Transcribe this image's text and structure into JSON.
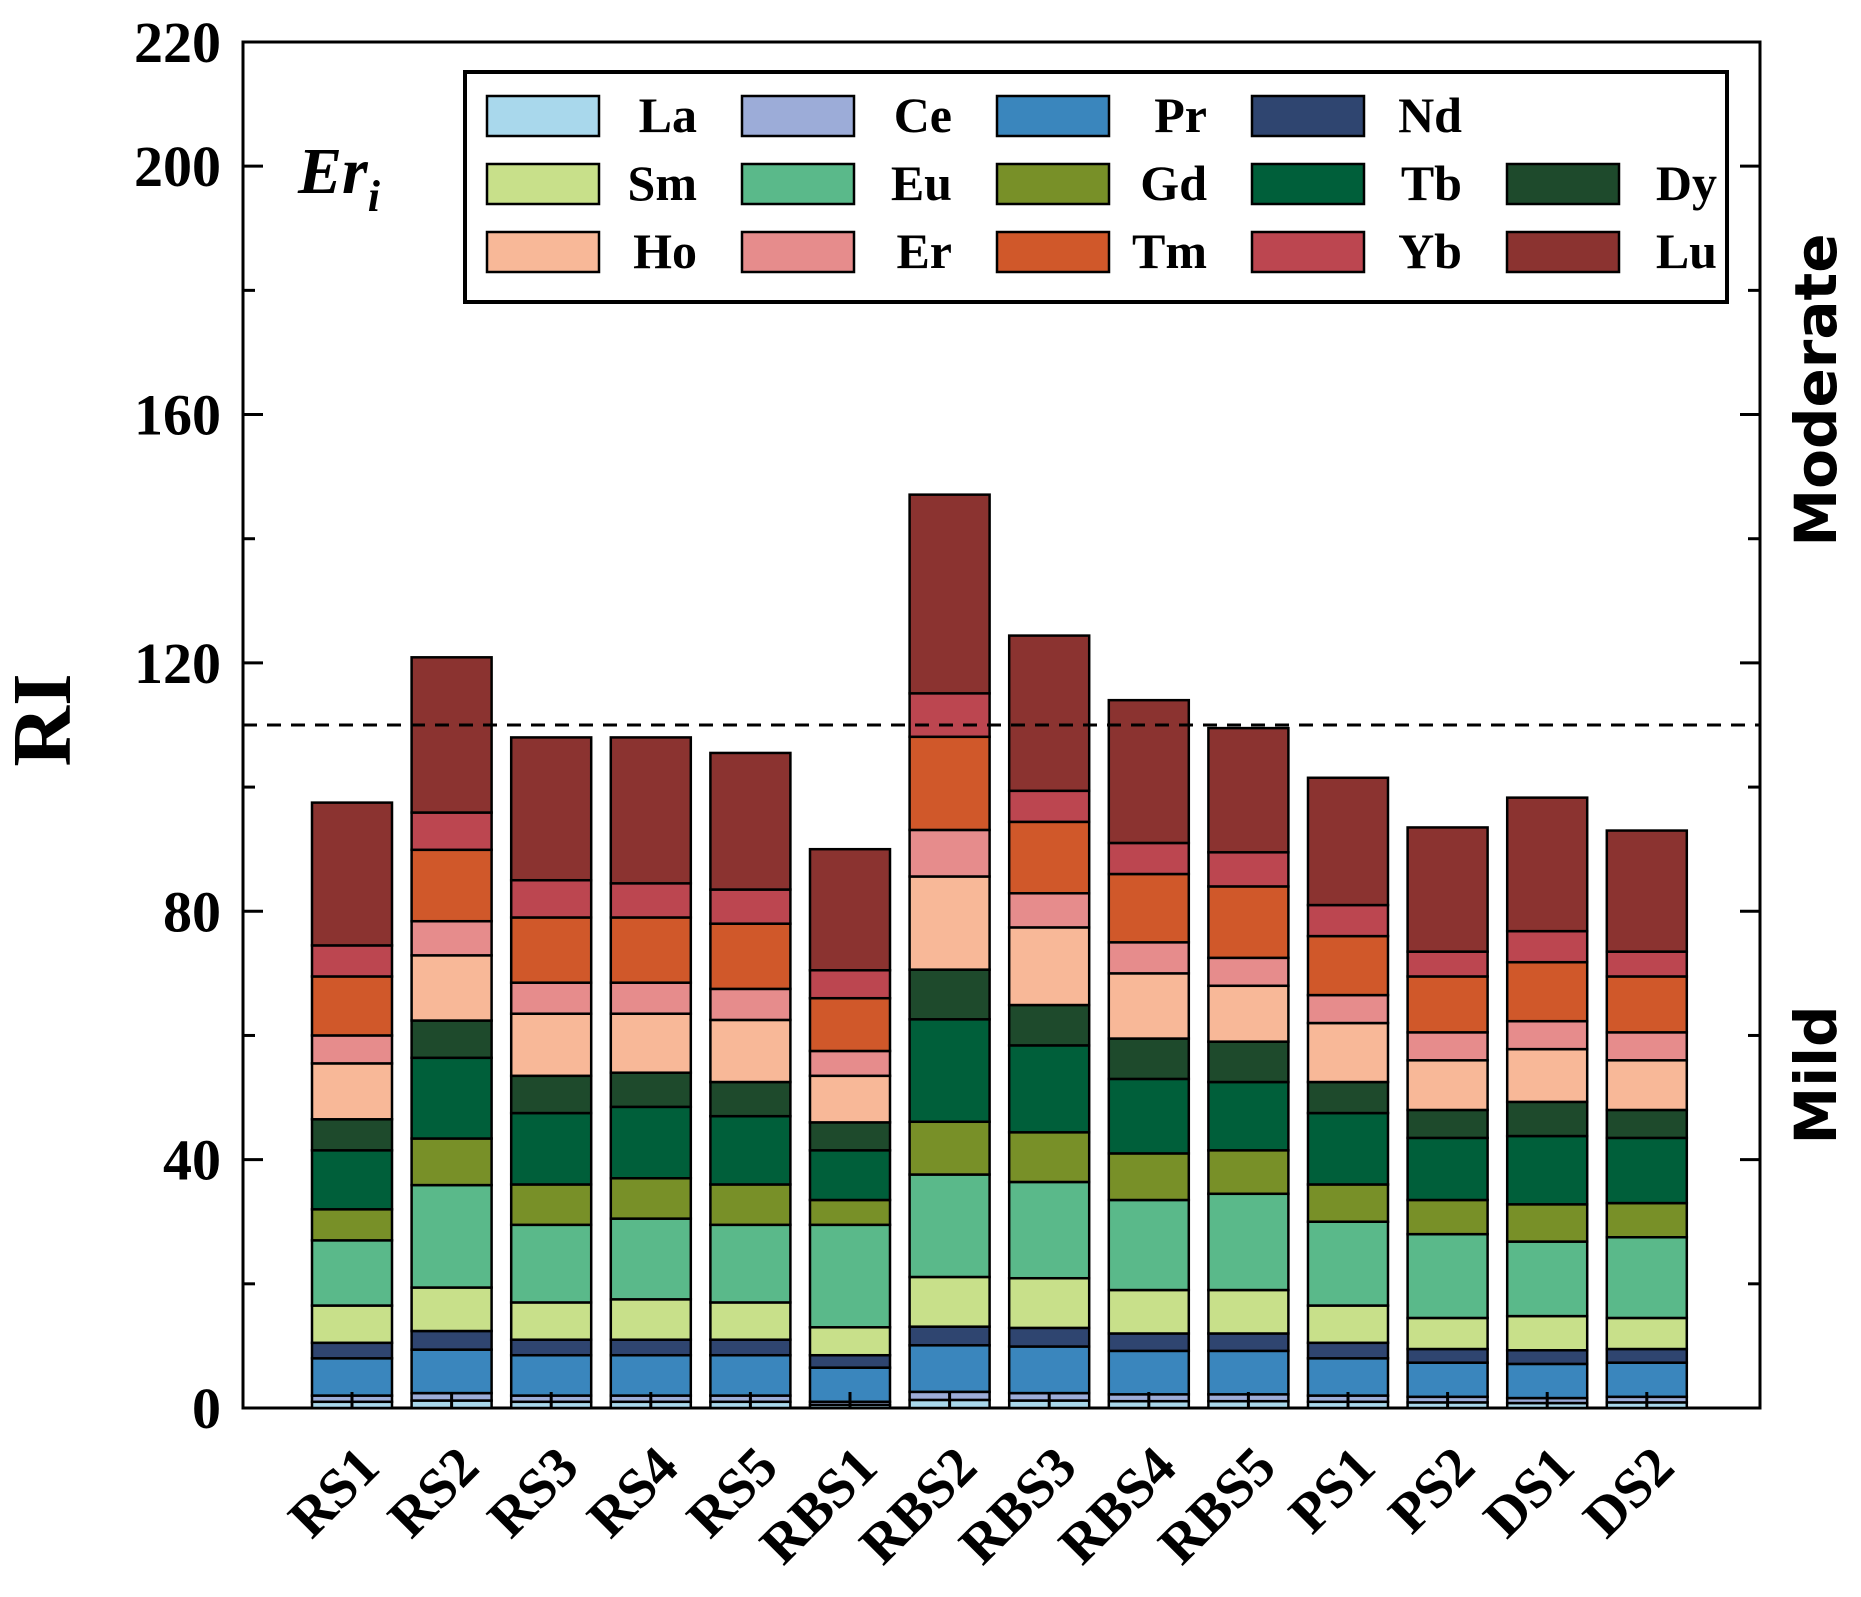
{
  "chart_data": {
    "type": "bar",
    "stacked": true,
    "title": "",
    "panel_label": "Er",
    "panel_label_sub": "i",
    "xlabel": "",
    "ylabel": "RI",
    "ylim": [
      0,
      220
    ],
    "yticks": [
      0,
      40,
      80,
      120,
      160,
      200,
      220
    ],
    "threshold": 110,
    "region_labels": [
      "Moderate",
      "Mild"
    ],
    "legend_position": "top",
    "categories": [
      "RS1",
      "RS2",
      "RS3",
      "RS4",
      "RS5",
      "RBS1",
      "RBS2",
      "RBS3",
      "RBS4",
      "RBS5",
      "PS1",
      "PS2",
      "DS1",
      "DS2"
    ],
    "series": [
      {
        "name": "La",
        "color": "#a9d8ec",
        "values": [
          1.0,
          1.2,
          1.0,
          1.0,
          1.0,
          0.5,
          1.3,
          1.2,
          1.1,
          1.1,
          1.0,
          0.9,
          0.8,
          0.9
        ]
      },
      {
        "name": "Ce",
        "color": "#9cacd8",
        "values": [
          1.0,
          1.2,
          1.0,
          1.0,
          1.0,
          0.5,
          1.3,
          1.2,
          1.1,
          1.1,
          1.0,
          0.9,
          0.8,
          0.9
        ]
      },
      {
        "name": "Pr",
        "color": "#3a86bd",
        "values": [
          6.0,
          7.0,
          6.5,
          6.5,
          6.5,
          5.5,
          7.5,
          7.5,
          7.0,
          7.0,
          6.0,
          5.5,
          5.5,
          5.5
        ]
      },
      {
        "name": "Nd",
        "color": "#2f4570",
        "values": [
          2.5,
          3.0,
          2.5,
          2.5,
          2.5,
          2.0,
          3.0,
          3.0,
          2.8,
          2.8,
          2.5,
          2.2,
          2.2,
          2.2
        ]
      },
      {
        "name": "Sm",
        "color": "#c8e08a",
        "values": [
          6.0,
          7.0,
          6.0,
          6.5,
          6.0,
          4.5,
          8.0,
          8.0,
          7.0,
          7.0,
          6.0,
          5.0,
          5.5,
          5.0
        ]
      },
      {
        "name": "Eu",
        "color": "#5ab98a",
        "values": [
          10.5,
          16.5,
          12.5,
          13.0,
          12.5,
          16.5,
          16.5,
          15.5,
          14.5,
          15.5,
          13.5,
          13.5,
          12.0,
          13.0
        ]
      },
      {
        "name": "Gd",
        "color": "#789028",
        "values": [
          5.0,
          7.5,
          6.5,
          6.5,
          6.5,
          4.0,
          8.5,
          8.0,
          7.5,
          7.0,
          6.0,
          5.5,
          6.0,
          5.5
        ]
      },
      {
        "name": "Tb",
        "color": "#005f3a",
        "values": [
          9.5,
          13.0,
          11.5,
          11.5,
          11.0,
          8.0,
          16.5,
          14.0,
          12.0,
          11.0,
          11.5,
          10.0,
          11.0,
          10.5
        ]
      },
      {
        "name": "Dy",
        "color": "#1e4a2c",
        "values": [
          5.0,
          6.0,
          6.0,
          5.5,
          5.5,
          4.5,
          8.0,
          6.5,
          6.5,
          6.5,
          5.0,
          4.5,
          5.5,
          4.5
        ]
      },
      {
        "name": "Ho",
        "color": "#f8b898",
        "values": [
          9.0,
          10.5,
          10.0,
          9.5,
          10.0,
          7.5,
          15.0,
          12.5,
          10.5,
          9.0,
          9.5,
          8.0,
          8.5,
          8.0
        ]
      },
      {
        "name": "Er",
        "color": "#e68c8c",
        "values": [
          4.5,
          5.5,
          5.0,
          5.0,
          5.0,
          4.0,
          7.5,
          5.5,
          5.0,
          4.5,
          4.5,
          4.5,
          4.5,
          4.5
        ]
      },
      {
        "name": "Tm",
        "color": "#d0582a",
        "values": [
          9.5,
          11.5,
          10.5,
          10.5,
          10.5,
          8.5,
          15.0,
          11.5,
          11.0,
          11.5,
          9.5,
          9.0,
          9.5,
          9.0
        ]
      },
      {
        "name": "Yb",
        "color": "#bc4650",
        "values": [
          5.0,
          6.0,
          6.0,
          5.5,
          5.5,
          4.5,
          7.0,
          5.0,
          5.0,
          5.5,
          5.0,
          4.0,
          5.0,
          4.0
        ]
      },
      {
        "name": "Lu",
        "color": "#8b3330",
        "values": [
          23.0,
          25.0,
          23.0,
          23.5,
          22.0,
          19.5,
          32.0,
          25.0,
          23.0,
          20.0,
          20.5,
          20.0,
          21.5,
          19.5
        ]
      }
    ]
  }
}
